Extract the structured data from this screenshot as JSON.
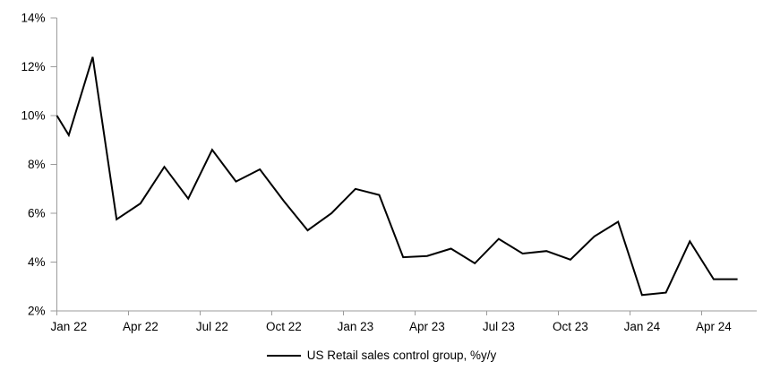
{
  "chart_data": {
    "type": "line",
    "title": "",
    "xlabel": "",
    "ylabel": "",
    "legend": "US Retail sales control group, %y/y",
    "legend_position": "bottom-center",
    "grid": false,
    "ylim": [
      2,
      14
    ],
    "ytick_step": 2,
    "ytick_suffix": "%",
    "xtick_labels": [
      "Jan 22",
      "Apr 22",
      "Jul 22",
      "Oct 22",
      "Jan 23",
      "Apr 23",
      "Jul 23",
      "Oct 23",
      "Jan 24",
      "Apr 24"
    ],
    "x": [
      "Jan 22",
      "Feb 22",
      "Mar 22",
      "Apr 22",
      "May 22",
      "Jun 22",
      "Jul 22",
      "Aug 22",
      "Sep 22",
      "Oct 22",
      "Nov 22",
      "Dec 22",
      "Jan 23",
      "Feb 23",
      "Mar 23",
      "Apr 23",
      "May 23",
      "Jun 23",
      "Jul 23",
      "Aug 23",
      "Sep 23",
      "Oct 23",
      "Nov 23",
      "Dec 23",
      "Jan 24",
      "Feb 24",
      "Mar 24",
      "Apr 24",
      "May 24"
    ],
    "series": [
      {
        "name": "US Retail sales control group, %y/y",
        "values": [
          9.2,
          12.4,
          5.75,
          6.4,
          7.9,
          6.6,
          8.6,
          7.3,
          7.8,
          6.5,
          5.3,
          6.0,
          7.0,
          6.75,
          4.2,
          4.25,
          4.55,
          3.95,
          4.95,
          4.35,
          4.45,
          4.1,
          5.05,
          5.65,
          2.65,
          2.75,
          4.85,
          3.3,
          3.3
        ]
      }
    ],
    "clipped_lead_in_value_at_left_axis": 10.0,
    "line_color": "#000000",
    "axis_color": "#9b9b9b",
    "text_color": "#000000"
  }
}
